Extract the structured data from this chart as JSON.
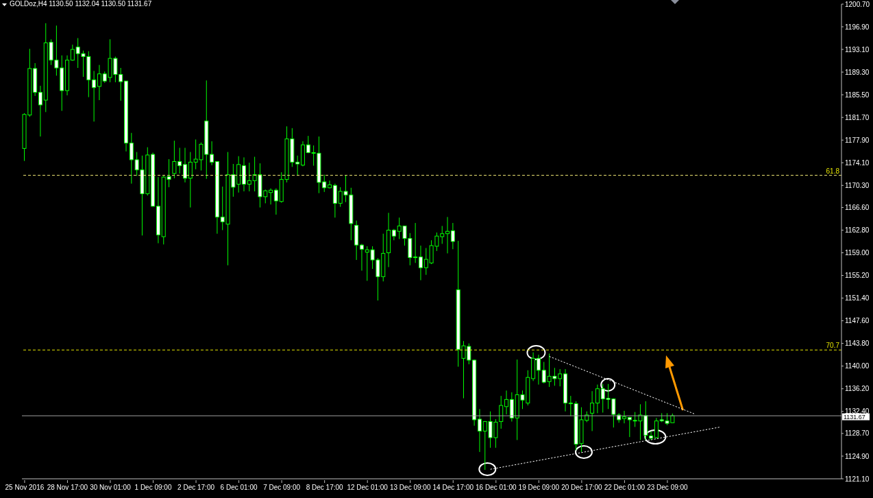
{
  "chart_data": {
    "type": "candlestick",
    "title": "GOLDoz,H4 1130.50 1132.04 1130.50 1131.67",
    "color": "#00ff00",
    "categories": [
      "25 Nov 2016",
      null,
      null,
      null,
      null,
      null,
      null,
      null,
      "28 Nov 17:00",
      null,
      null,
      null,
      null,
      null,
      null,
      null,
      "30 Nov 01:00",
      null,
      null,
      null,
      null,
      null,
      null,
      null,
      "1 Dec 09:00",
      null,
      null,
      null,
      null,
      null,
      null,
      null,
      "2 Dec 17:00",
      null,
      null,
      null,
      null,
      null,
      null,
      null,
      "6 Dec 01:00",
      null,
      null,
      null,
      null,
      null,
      null,
      null,
      "7 Dec 09:00",
      null,
      null,
      null,
      null,
      null,
      null,
      null,
      "8 Dec 17:00",
      null,
      null,
      null,
      null,
      null,
      null,
      null,
      "12 Dec 01:00",
      null,
      null,
      null,
      null,
      null,
      null,
      null,
      "13 Dec 09:00",
      null,
      null,
      null,
      null,
      null,
      null,
      null,
      "14 Dec 17:00",
      null,
      null,
      null,
      null,
      null,
      null,
      null,
      "16 Dec 01:00",
      null,
      null,
      null,
      null,
      null,
      null,
      null,
      "19 Dec 09:00",
      null,
      null,
      null,
      null,
      null,
      null,
      null,
      "20 Dec 17:00",
      null,
      null,
      null,
      null,
      null,
      null,
      null,
      "22 Dec 01:00",
      null,
      null,
      null,
      null,
      null,
      null,
      null,
      "23 Dec 09:00",
      null,
      null,
      null,
      null,
      null,
      null,
      null,
      null,
      null,
      null,
      null,
      null,
      null,
      null,
      null,
      null,
      null,
      null,
      null,
      null,
      null,
      null,
      null,
      null,
      null,
      null,
      null,
      null,
      null,
      null,
      null,
      null
    ],
    "ohlc": [
      [
        1176.5,
        1182.4,
        1174.4,
        1182.2
      ],
      [
        1182.1,
        1193.2,
        1181.8,
        1189.9
      ],
      [
        1189.9,
        1190.8,
        1185.3,
        1185.9
      ],
      [
        1185.9,
        1187.0,
        1178.5,
        1183.8
      ],
      [
        1184.6,
        1197.5,
        1182.6,
        1194.2
      ],
      [
        1194.3,
        1194.8,
        1190.5,
        1191.3
      ],
      [
        1191.3,
        1197.1,
        1188.7,
        1190.0
      ],
      [
        1190.0,
        1192.1,
        1182.8,
        1186.2
      ],
      [
        1186.2,
        1192.1,
        1185.4,
        1191.3
      ],
      [
        1191.3,
        1193.9,
        1191.2,
        1193.1
      ],
      [
        1193.5,
        1195.0,
        1190.0,
        1192.4
      ],
      [
        1192.4,
        1192.9,
        1188.5,
        1191.9
      ],
      [
        1191.9,
        1192.8,
        1185.1,
        1188.0
      ],
      [
        1188.0,
        1189.5,
        1181.0,
        1186.7
      ],
      [
        1186.9,
        1190.5,
        1184.6,
        1189.0
      ],
      [
        1189.0,
        1189.4,
        1187.5,
        1187.8
      ],
      [
        1188.4,
        1194.8,
        1187.6,
        1191.6
      ],
      [
        1191.6,
        1191.9,
        1187.6,
        1188.9
      ],
      [
        1188.9,
        1190.0,
        1184.5,
        1187.7
      ],
      [
        1187.8,
        1187.8,
        1176.0,
        1177.4
      ],
      [
        1177.4,
        1179.1,
        1170.6,
        1174.6
      ],
      [
        1174.6,
        1175.9,
        1171.9,
        1172.9
      ],
      [
        1172.9,
        1175.3,
        1161.9,
        1168.9
      ],
      [
        1168.9,
        1176.7,
        1168.6,
        1175.4
      ],
      [
        1175.5,
        1175.8,
        1166.7,
        1166.8
      ],
      [
        1166.8,
        1171.7,
        1160.6,
        1162.0
      ],
      [
        1161.7,
        1171.9,
        1160.4,
        1171.7
      ],
      [
        1171.8,
        1174.7,
        1170.0,
        1171.3
      ],
      [
        1172.3,
        1177.8,
        1171.5,
        1174.3
      ],
      [
        1174.3,
        1176.6,
        1172.3,
        1173.6
      ],
      [
        1173.8,
        1176.6,
        1170.8,
        1171.5
      ],
      [
        1171.5,
        1175.9,
        1166.6,
        1174.2
      ],
      [
        1174.2,
        1178.0,
        1173.0,
        1174.7
      ],
      [
        1174.6,
        1177.5,
        1172.8,
        1177.2
      ],
      [
        1181.1,
        1187.9,
        1171.4,
        1175.5
      ],
      [
        1175.5,
        1177.7,
        1173.7,
        1174.2
      ],
      [
        1174.3,
        1174.3,
        1162.2,
        1165.0
      ],
      [
        1165.0,
        1170.1,
        1162.8,
        1164.2
      ],
      [
        1163.8,
        1175.9,
        1156.9,
        1172.1
      ],
      [
        1172.1,
        1173.9,
        1168.4,
        1170.0
      ],
      [
        1170.5,
        1175.2,
        1169.1,
        1173.8
      ],
      [
        1173.6,
        1175.0,
        1169.3,
        1170.5
      ],
      [
        1170.5,
        1174.1,
        1169.3,
        1171.1
      ],
      [
        1171.1,
        1175.1,
        1169.3,
        1172.1
      ],
      [
        1172.1,
        1174.0,
        1166.6,
        1168.4
      ],
      [
        1168.4,
        1169.6,
        1167.3,
        1169.4
      ],
      [
        1169.1,
        1169.8,
        1167.1,
        1169.5
      ],
      [
        1169.5,
        1169.8,
        1165.4,
        1167.7
      ],
      [
        1167.6,
        1172.5,
        1167.4,
        1171.3
      ],
      [
        1171.3,
        1180.2,
        1170.8,
        1178.1
      ],
      [
        1178.1,
        1179.9,
        1173.4,
        1174.2
      ],
      [
        1174.2,
        1175.3,
        1172.0,
        1173.9
      ],
      [
        1173.7,
        1177.7,
        1173.5,
        1177.1
      ],
      [
        1177.1,
        1178.6,
        1175.7,
        1175.8
      ],
      [
        1175.8,
        1177.0,
        1173.6,
        1175.7
      ],
      [
        1175.7,
        1178.5,
        1169.0,
        1170.8
      ],
      [
        1170.9,
        1172.1,
        1169.2,
        1169.9
      ],
      [
        1169.9,
        1171.1,
        1169.8,
        1170.4
      ],
      [
        1170.3,
        1170.6,
        1164.9,
        1167.3
      ],
      [
        1167.3,
        1170.0,
        1166.7,
        1169.3
      ],
      [
        1169.3,
        1172.0,
        1167.5,
        1168.7
      ],
      [
        1168.7,
        1169.9,
        1161.1,
        1163.9
      ],
      [
        1163.6,
        1164.4,
        1157.8,
        1160.3
      ],
      [
        1160.3,
        1160.5,
        1156.0,
        1159.6
      ],
      [
        1159.1,
        1160.1,
        1154.3,
        1159.5
      ],
      [
        1159.5,
        1160.1,
        1156.3,
        1157.8
      ],
      [
        1157.8,
        1158.1,
        1151.0,
        1155.0
      ],
      [
        1155.0,
        1162.2,
        1154.2,
        1158.9
      ],
      [
        1159.0,
        1165.7,
        1156.6,
        1162.8
      ],
      [
        1162.8,
        1163.0,
        1161.1,
        1161.8
      ],
      [
        1162.6,
        1164.9,
        1161.3,
        1163.5
      ],
      [
        1163.5,
        1163.5,
        1160.2,
        1161.4
      ],
      [
        1161.4,
        1162.3,
        1156.9,
        1158.2
      ],
      [
        1158.3,
        1164.0,
        1157.3,
        1158.2
      ],
      [
        1158.3,
        1160.2,
        1154.4,
        1156.5
      ],
      [
        1156.5,
        1159.8,
        1155.3,
        1157.9
      ],
      [
        1157.3,
        1161.1,
        1157.1,
        1160.2
      ],
      [
        1160.1,
        1162.4,
        1159.3,
        1161.8
      ],
      [
        1161.7,
        1163.5,
        1160.5,
        1162.2
      ],
      [
        1162.2,
        1165.0,
        1158.9,
        1162.6
      ],
      [
        1162.7,
        1164.0,
        1159.6,
        1160.9
      ],
      [
        1152.8,
        1161.0,
        1139.9,
        1142.8
      ],
      [
        1141.3,
        1144.2,
        1134.6,
        1143.4
      ],
      [
        1143.3,
        1143.8,
        1140.3,
        1141.0
      ],
      [
        1141.0,
        1141.1,
        1130.0,
        1131.0
      ],
      [
        1131.1,
        1132.8,
        1125.6,
        1129.1
      ],
      [
        1129.1,
        1130.8,
        1122.6,
        1130.7
      ],
      [
        1130.7,
        1132.4,
        1126.3,
        1128.0
      ],
      [
        1128.0,
        1131.1,
        1126.3,
        1130.6
      ],
      [
        1130.7,
        1135.0,
        1129.5,
        1133.4
      ],
      [
        1133.2,
        1135.9,
        1131.9,
        1134.4
      ],
      [
        1134.4,
        1135.6,
        1130.7,
        1131.3
      ],
      [
        1131.3,
        1141.1,
        1127.6,
        1135.2
      ],
      [
        1135.2,
        1135.9,
        1132.8,
        1134.3
      ],
      [
        1133.8,
        1139.3,
        1133.4,
        1138.1
      ],
      [
        1137.9,
        1142.3,
        1137.5,
        1141.3
      ],
      [
        1141.3,
        1141.9,
        1136.9,
        1139.3
      ],
      [
        1139.3,
        1140.7,
        1137.1,
        1137.3
      ],
      [
        1137.4,
        1142.1,
        1136.5,
        1138.3
      ],
      [
        1138.3,
        1139.7,
        1136.7,
        1137.9
      ],
      [
        1137.9,
        1139.5,
        1136.6,
        1138.7
      ],
      [
        1138.7,
        1139.5,
        1132.4,
        1133.8
      ],
      [
        1133.8,
        1135.0,
        1131.6,
        1133.7
      ],
      [
        1133.7,
        1134.1,
        1125.9,
        1126.9
      ],
      [
        1127.0,
        1133.1,
        1125.6,
        1131.0
      ],
      [
        1130.9,
        1132.4,
        1130.6,
        1131.8
      ],
      [
        1132.1,
        1135.8,
        1129.1,
        1133.8
      ],
      [
        1133.8,
        1136.9,
        1132.1,
        1136.2
      ],
      [
        1136.2,
        1137.0,
        1132.2,
        1134.5
      ],
      [
        1134.6,
        1137.0,
        1132.8,
        1134.4
      ],
      [
        1134.5,
        1134.6,
        1129.7,
        1131.9
      ],
      [
        1131.8,
        1132.1,
        1130.5,
        1131.0
      ],
      [
        1131.2,
        1132.5,
        1130.4,
        1131.5
      ],
      [
        1131.4,
        1131.5,
        1128.1,
        1131.0
      ],
      [
        1130.9,
        1132.3,
        1129.8,
        1130.8
      ],
      [
        1130.8,
        1133.6,
        1127.6,
        1131.8
      ],
      [
        1131.7,
        1134.1,
        1127.6,
        1128.4
      ],
      [
        1128.3,
        1129.1,
        1127.6,
        1127.9
      ],
      [
        1128.0,
        1131.3,
        1127.9,
        1130.8
      ],
      [
        1131.0,
        1132.1,
        1130.6,
        1130.8
      ],
      [
        1130.8,
        1132.1,
        1130.1,
        1130.4
      ],
      [
        1130.5,
        1132.04,
        1130.5,
        1131.67
      ],
      null,
      null,
      null,
      null,
      null,
      null,
      null,
      null,
      null,
      null,
      null,
      null,
      null,
      null,
      null,
      null,
      null,
      null,
      null,
      null,
      null,
      null,
      null,
      null,
      null,
      null,
      null,
      null,
      null,
      null,
      null
    ],
    "series": [
      {
        "type": "line",
        "color": "#ffffff",
        "line_style": "dotted",
        "values": [
          null,
          null,
          null,
          null,
          null,
          null,
          null,
          null,
          null,
          null,
          null,
          null,
          null,
          null,
          null,
          null,
          null,
          null,
          null,
          null,
          null,
          null,
          null,
          null,
          null,
          null,
          null,
          null,
          null,
          null,
          null,
          null,
          null,
          null,
          null,
          null,
          null,
          null,
          null,
          null,
          null,
          null,
          null,
          null,
          null,
          null,
          null,
          null,
          null,
          null,
          null,
          null,
          null,
          null,
          null,
          null,
          null,
          null,
          null,
          null,
          null,
          null,
          null,
          null,
          null,
          null,
          null,
          null,
          null,
          null,
          null,
          null,
          null,
          null,
          null,
          null,
          null,
          null,
          null,
          null,
          null,
          null,
          null,
          null,
          null,
          null,
          null,
          null,
          null,
          null,
          null,
          null,
          null,
          null,
          null,
          null,
          null,
          null,
          1141.6,
          null,
          null,
          null,
          null,
          null,
          null,
          null,
          null,
          null,
          null,
          null,
          null,
          null,
          null,
          null,
          null,
          null,
          null,
          null,
          null,
          null,
          null,
          null,
          null,
          null,
          null,
          1132.0,
          null,
          null,
          null,
          null,
          null,
          null,
          null,
          null,
          null,
          null,
          null,
          null,
          null,
          null,
          null,
          null,
          null,
          null,
          null,
          null,
          null,
          null,
          null,
          null,
          null,
          null,
          null
        ]
      },
      {
        "type": "line",
        "color": "#ffffff",
        "line_style": "dotted",
        "values": [
          null,
          null,
          null,
          null,
          null,
          null,
          null,
          null,
          null,
          null,
          null,
          null,
          null,
          null,
          null,
          null,
          null,
          null,
          null,
          null,
          null,
          null,
          null,
          null,
          null,
          null,
          null,
          null,
          null,
          null,
          null,
          null,
          null,
          null,
          null,
          null,
          null,
          null,
          null,
          null,
          null,
          null,
          null,
          null,
          null,
          null,
          null,
          null,
          null,
          null,
          null,
          null,
          null,
          null,
          null,
          null,
          null,
          null,
          null,
          null,
          null,
          null,
          null,
          null,
          null,
          null,
          null,
          null,
          null,
          null,
          null,
          null,
          null,
          null,
          null,
          null,
          null,
          null,
          null,
          null,
          null,
          null,
          null,
          null,
          null,
          null,
          null,
          1122.7,
          null,
          null,
          null,
          null,
          null,
          null,
          null,
          null,
          null,
          null,
          null,
          null,
          null,
          null,
          null,
          null,
          null,
          null,
          null,
          null,
          null,
          null,
          null,
          null,
          null,
          null,
          null,
          null,
          null,
          null,
          null,
          null,
          null,
          null,
          null,
          null,
          null,
          null,
          null,
          null,
          null,
          null,
          1129.8,
          null,
          null,
          null,
          null,
          null,
          null,
          null,
          null,
          null,
          null,
          null,
          null,
          null,
          null,
          null,
          null,
          null,
          null,
          null,
          null,
          null,
          null
        ]
      }
    ],
    "ylim": [
      1121.1,
      1200.7
    ],
    "yticks": [
      {
        "value": 1121.1,
        "label": "1121.10"
      },
      {
        "value": 1124.9,
        "label": "1124.90"
      },
      {
        "value": 1128.7,
        "label": "1128.70"
      },
      {
        "value": 1132.4,
        "label": "1132.40"
      },
      {
        "value": 1136.2,
        "label": "1136.20"
      },
      {
        "value": 1140.0,
        "label": "1140.00"
      },
      {
        "value": 1143.8,
        "label": "1143.80"
      },
      {
        "value": 1147.6,
        "label": "1147.60"
      },
      {
        "value": 1151.4,
        "label": "1151.40"
      },
      {
        "value": 1155.2,
        "label": "1155.20"
      },
      {
        "value": 1159.0,
        "label": "1159.00"
      },
      {
        "value": 1162.8,
        "label": "1162.80"
      },
      {
        "value": 1166.6,
        "label": "1166.60"
      },
      {
        "value": 1170.3,
        "label": "1170.30"
      },
      {
        "value": 1174.1,
        "label": "1174.10"
      },
      {
        "value": 1177.9,
        "label": "1177.90"
      },
      {
        "value": 1181.7,
        "label": "1181.70"
      },
      {
        "value": 1185.5,
        "label": "1185.50"
      },
      {
        "value": 1189.3,
        "label": "1189.30"
      },
      {
        "value": 1193.1,
        "label": "1193.10"
      },
      {
        "value": 1196.9,
        "label": "1196.90"
      },
      {
        "value": 1200.7,
        "label": "1200.70"
      }
    ],
    "ref_lines": [
      {
        "axis": "y",
        "value": 1172.0,
        "color": "#e8e070",
        "line_style": "dashed"
      },
      {
        "axis": "y",
        "value": 1142.7,
        "color": "#e6e600",
        "line_style": "dashed"
      },
      {
        "axis": "y",
        "value": 1131.67,
        "label": "1131.67",
        "color": "#a0a0a0",
        "line_style": "solid"
      }
    ],
    "annotations": [
      {
        "text": "61.8",
        "y": 1172.0
      },
      {
        "text": "70.7",
        "y": 1142.7
      }
    ]
  }
}
